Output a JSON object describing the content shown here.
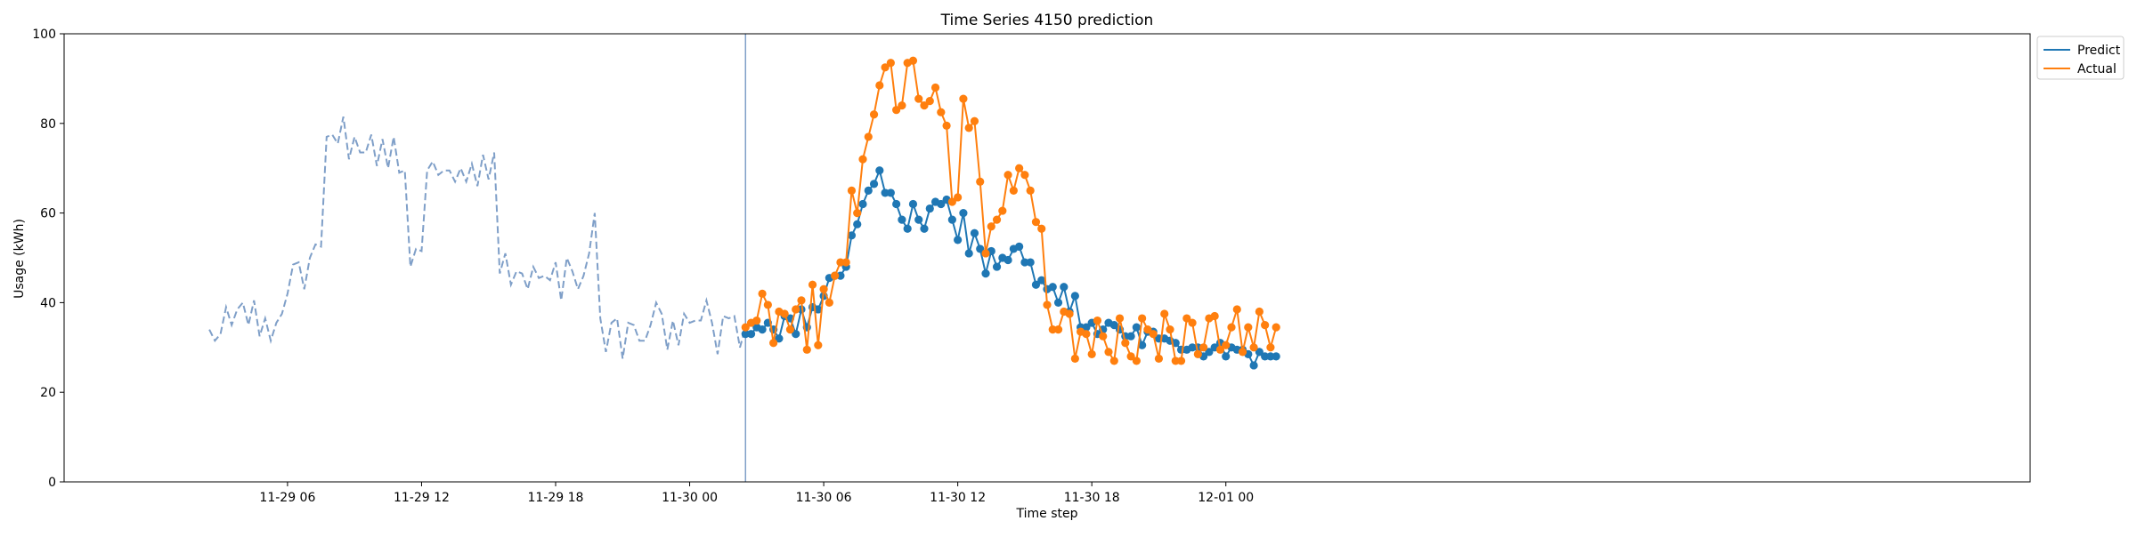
{
  "chart_data": {
    "type": "line",
    "title": "Time Series 4150 prediction",
    "xlabel": "Time step",
    "ylabel": "Usage (kWh)",
    "ylim": [
      0,
      100
    ],
    "yticks": [
      0,
      20,
      40,
      60,
      80,
      100
    ],
    "xlim": [
      -4,
      84
    ],
    "x_unit": "hours since 11-29 00:00",
    "xticks": [
      {
        "x": 6,
        "label": "11-29 06"
      },
      {
        "x": 12,
        "label": "11-29 12"
      },
      {
        "x": 18,
        "label": "11-29 18"
      },
      {
        "x": 24,
        "label": "11-30 00"
      },
      {
        "x": 30,
        "label": "11-30 06"
      },
      {
        "x": 36,
        "label": "11-30 12"
      },
      {
        "x": 42,
        "label": "11-30 18"
      },
      {
        "x": 48,
        "label": "12-01 00"
      }
    ],
    "forecast_start": 26.5,
    "step_hours": 0.25,
    "legend": {
      "placement": "top-right-outside",
      "entries": [
        "Predict",
        "Actual"
      ]
    },
    "colors": {
      "history": "#7f9fc8",
      "predict": "#1f77b4",
      "actual": "#ff7f0e",
      "divider": "#7f9fc8"
    },
    "history": {
      "x_start": 2.5,
      "values": [
        34,
        31.5,
        33,
        39,
        35,
        38.5,
        40,
        35,
        40.5,
        32.5,
        36.5,
        31.5,
        35.5,
        37.5,
        42,
        48.5,
        49,
        43,
        50,
        53,
        52.5,
        77,
        77.5,
        75.5,
        81.5,
        72,
        77,
        73.5,
        73.5,
        77.5,
        70.5,
        76.5,
        70,
        77,
        69,
        69.5,
        48,
        52,
        51.5,
        69.5,
        71.5,
        68.5,
        69.5,
        69.5,
        67,
        70,
        67,
        71,
        66,
        73,
        67.5,
        73.5,
        46.5,
        51,
        44,
        47,
        46.5,
        43,
        48,
        45.5,
        46,
        45,
        49,
        40.5,
        50,
        47,
        43,
        46,
        51,
        60,
        36.5,
        29,
        35.5,
        36.5,
        27.5,
        35.5,
        35,
        31.5,
        31.5,
        35,
        40,
        37.5,
        29.5,
        36,
        30.5,
        37.5,
        35.5,
        36,
        36,
        40.5,
        35.5,
        28.5,
        37,
        36.5,
        37,
        30,
        34.5
      ]
    },
    "series": [
      {
        "name": "Predict",
        "x_start": 26.5,
        "values": [
          33,
          33,
          34.5,
          34,
          35.5,
          34,
          32,
          37,
          36.5,
          33,
          38.5,
          34.5,
          39,
          38.5,
          41.5,
          45.5,
          46,
          46,
          48,
          55,
          57.5,
          62,
          65,
          66.5,
          69.5,
          64.5,
          64.5,
          62,
          58.5,
          56.5,
          62,
          58.5,
          56.5,
          61,
          62.5,
          62,
          63,
          58.5,
          54,
          60,
          51,
          55.5,
          52,
          46.5,
          51.5,
          48,
          50,
          49.5,
          52,
          52.5,
          49,
          49,
          44,
          45,
          43,
          43.5,
          40,
          43.5,
          38,
          41.5,
          34.5,
          34.5,
          35.5,
          33,
          34,
          35.5,
          35,
          34,
          32.5,
          32.5,
          34.5,
          30.5,
          33.5,
          33.5,
          32,
          32,
          31.5,
          31,
          29.5,
          29.5,
          30,
          30,
          28,
          29,
          30,
          31,
          28,
          30,
          29.5,
          29.5,
          28.5,
          26,
          29,
          28,
          28,
          28
        ]
      },
      {
        "name": "Actual",
        "x_start": 26.5,
        "values": [
          34.5,
          35.5,
          36,
          42,
          39.5,
          31,
          38,
          37.5,
          34,
          38.5,
          40.5,
          29.5,
          44,
          30.5,
          43,
          40,
          46,
          49,
          49,
          65,
          60,
          72,
          77,
          82,
          88.5,
          92.5,
          93.5,
          83,
          84,
          93.5,
          94,
          85.5,
          84,
          85,
          88,
          82.5,
          79.5,
          62.5,
          63.5,
          85.5,
          79,
          80.5,
          67,
          51,
          57,
          58.5,
          60.5,
          68.5,
          65,
          70,
          68.5,
          65,
          58,
          56.5,
          39.5,
          34,
          34,
          38,
          37.5,
          27.5,
          33.5,
          33,
          28.5,
          36,
          32.5,
          29,
          27,
          36.5,
          31,
          28,
          27,
          36.5,
          34,
          33,
          27.5,
          37.5,
          34,
          27,
          27,
          36.5,
          35.5,
          28.5,
          30,
          36.5,
          37,
          29.5,
          30.5,
          34.5,
          38.5,
          29,
          34.5,
          30,
          38,
          35,
          30,
          34.5
        ]
      }
    ]
  }
}
